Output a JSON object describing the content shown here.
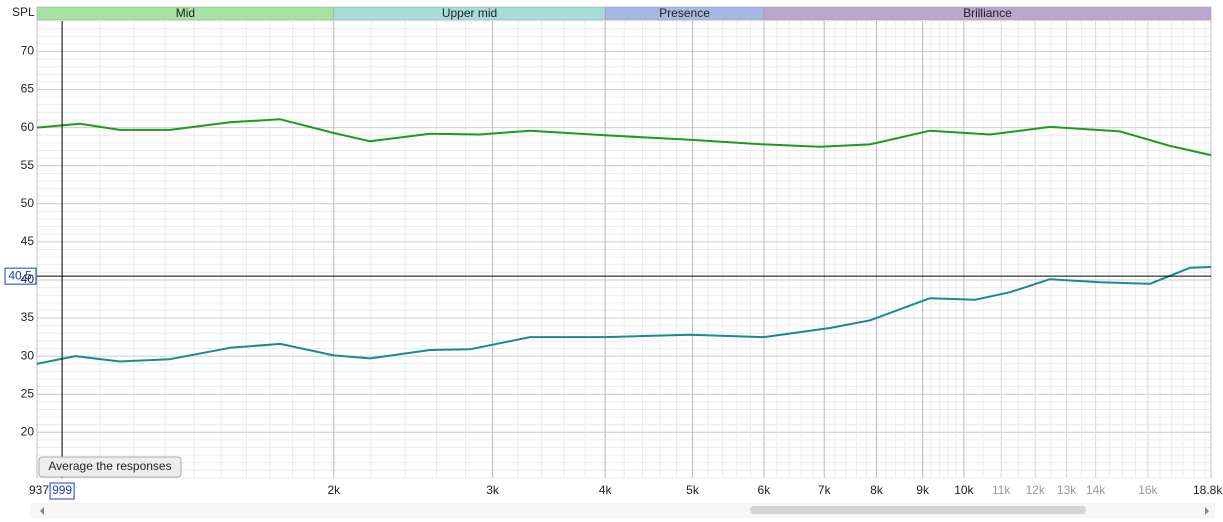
{
  "chart_data": {
    "type": "line",
    "y_label": "SPL",
    "log_x": true,
    "xlim": [
      937,
      18800
    ],
    "ylim": [
      14,
      74
    ],
    "xticks": [
      937,
      {
        "value": 2000,
        "label": "2k"
      },
      {
        "value": 3000,
        "label": "3k"
      },
      {
        "value": 4000,
        "label": "4k"
      },
      {
        "value": 5000,
        "label": "5k"
      },
      {
        "value": 6000,
        "label": "6k"
      },
      {
        "value": 7000,
        "label": "7k"
      },
      {
        "value": 8000,
        "label": "8k"
      },
      {
        "value": 9000,
        "label": "9k"
      },
      {
        "value": 10000,
        "label": "10k"
      },
      {
        "value": 18800,
        "label": "18.8kHz"
      }
    ],
    "xticks_minor": [
      {
        "value": 11000,
        "label": "11k"
      },
      {
        "value": 12000,
        "label": "12k"
      },
      {
        "value": 13000,
        "label": "13k"
      },
      {
        "value": 14000,
        "label": "14k"
      },
      {
        "value": 16000,
        "label": "16k"
      }
    ],
    "yticks": [
      20,
      25,
      30,
      35,
      40,
      45,
      50,
      55,
      60,
      65,
      70
    ],
    "grid": true,
    "cursor_x": 999,
    "cursor_y": 40.5,
    "bands": [
      {
        "label": "Mid",
        "from": 500,
        "to": 2000,
        "color": "#a8e2a2"
      },
      {
        "label": "Upper mid",
        "from": 2000,
        "to": 4000,
        "color": "#a6ddd8"
      },
      {
        "label": "Presence",
        "from": 4000,
        "to": 6000,
        "color": "#a6b9e2"
      },
      {
        "label": "Brilliance",
        "from": 6000,
        "to": 20000,
        "color": "#b9a6cf"
      }
    ],
    "button": "Average the responses",
    "series": [
      {
        "color": "#1f9a1f",
        "x": [
          937,
          1046,
          1158,
          1316,
          1534,
          1744,
          2000,
          2194,
          2557,
          2906,
          3302,
          4000,
          4967,
          6000,
          6925,
          7869,
          9171,
          10690,
          12462,
          14900,
          16930,
          18800
        ],
        "values": [
          60.0,
          60.5,
          59.7,
          59.7,
          60.7,
          61.1,
          59.3,
          58.2,
          59.2,
          59.1,
          59.6,
          59.0,
          58.4,
          57.8,
          57.5,
          57.8,
          59.6,
          59.1,
          60.1,
          59.5,
          57.6,
          56.4
        ]
      },
      {
        "color": "#1a8a8a",
        "x": [
          937,
          1033,
          1158,
          1316,
          1534,
          1744,
          2000,
          2194,
          2557,
          2832,
          3302,
          4000,
          4967,
          6000,
          7102,
          7869,
          9171,
          10289,
          11253,
          12462,
          14157,
          16088,
          17820,
          18800
        ],
        "values": [
          29.0,
          30.0,
          29.3,
          29.6,
          31.1,
          31.6,
          30.1,
          29.7,
          30.8,
          30.9,
          32.5,
          32.5,
          32.8,
          32.5,
          33.7,
          34.7,
          37.6,
          37.4,
          38.4,
          40.1,
          39.7,
          39.5,
          41.6,
          41.7
        ]
      }
    ]
  }
}
